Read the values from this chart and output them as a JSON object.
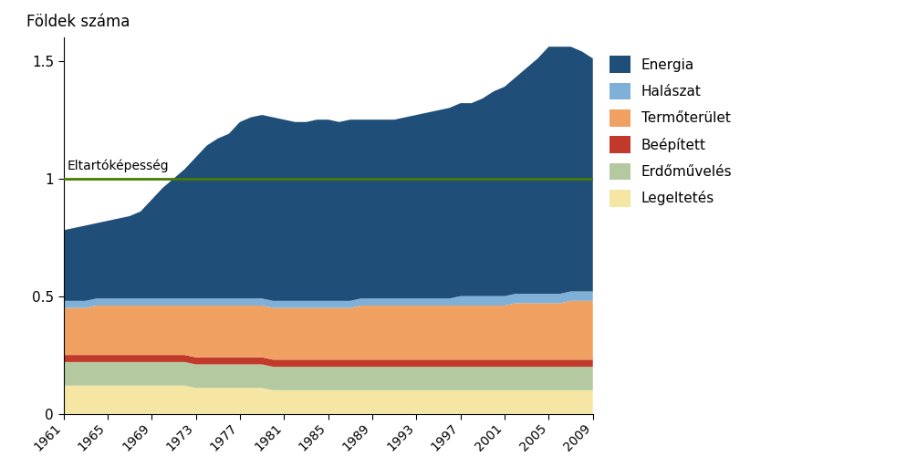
{
  "years": [
    1961,
    1962,
    1963,
    1964,
    1965,
    1966,
    1967,
    1968,
    1969,
    1970,
    1971,
    1972,
    1973,
    1974,
    1975,
    1976,
    1977,
    1978,
    1979,
    1980,
    1981,
    1982,
    1983,
    1984,
    1985,
    1986,
    1987,
    1988,
    1989,
    1990,
    1991,
    1992,
    1993,
    1994,
    1995,
    1996,
    1997,
    1998,
    1999,
    2000,
    2001,
    2002,
    2003,
    2004,
    2005,
    2006,
    2007,
    2008,
    2009
  ],
  "legeletes": [
    0.12,
    0.12,
    0.12,
    0.12,
    0.12,
    0.12,
    0.12,
    0.12,
    0.12,
    0.12,
    0.12,
    0.12,
    0.11,
    0.11,
    0.11,
    0.11,
    0.11,
    0.11,
    0.11,
    0.1,
    0.1,
    0.1,
    0.1,
    0.1,
    0.1,
    0.1,
    0.1,
    0.1,
    0.1,
    0.1,
    0.1,
    0.1,
    0.1,
    0.1,
    0.1,
    0.1,
    0.1,
    0.1,
    0.1,
    0.1,
    0.1,
    0.1,
    0.1,
    0.1,
    0.1,
    0.1,
    0.1,
    0.1,
    0.1
  ],
  "erdoMuveles": [
    0.1,
    0.1,
    0.1,
    0.1,
    0.1,
    0.1,
    0.1,
    0.1,
    0.1,
    0.1,
    0.1,
    0.1,
    0.1,
    0.1,
    0.1,
    0.1,
    0.1,
    0.1,
    0.1,
    0.1,
    0.1,
    0.1,
    0.1,
    0.1,
    0.1,
    0.1,
    0.1,
    0.1,
    0.1,
    0.1,
    0.1,
    0.1,
    0.1,
    0.1,
    0.1,
    0.1,
    0.1,
    0.1,
    0.1,
    0.1,
    0.1,
    0.1,
    0.1,
    0.1,
    0.1,
    0.1,
    0.1,
    0.1,
    0.1
  ],
  "beepitett": [
    0.03,
    0.03,
    0.03,
    0.03,
    0.03,
    0.03,
    0.03,
    0.03,
    0.03,
    0.03,
    0.03,
    0.03,
    0.03,
    0.03,
    0.03,
    0.03,
    0.03,
    0.03,
    0.03,
    0.03,
    0.03,
    0.03,
    0.03,
    0.03,
    0.03,
    0.03,
    0.03,
    0.03,
    0.03,
    0.03,
    0.03,
    0.03,
    0.03,
    0.03,
    0.03,
    0.03,
    0.03,
    0.03,
    0.03,
    0.03,
    0.03,
    0.03,
    0.03,
    0.03,
    0.03,
    0.03,
    0.03,
    0.03,
    0.03
  ],
  "termoTerulet": [
    0.2,
    0.2,
    0.2,
    0.21,
    0.21,
    0.21,
    0.21,
    0.21,
    0.21,
    0.21,
    0.21,
    0.21,
    0.22,
    0.22,
    0.22,
    0.22,
    0.22,
    0.22,
    0.22,
    0.22,
    0.22,
    0.22,
    0.22,
    0.22,
    0.22,
    0.22,
    0.22,
    0.23,
    0.23,
    0.23,
    0.23,
    0.23,
    0.23,
    0.23,
    0.23,
    0.23,
    0.23,
    0.23,
    0.23,
    0.23,
    0.23,
    0.24,
    0.24,
    0.24,
    0.24,
    0.24,
    0.25,
    0.25,
    0.25
  ],
  "halaszat": [
    0.03,
    0.03,
    0.03,
    0.03,
    0.03,
    0.03,
    0.03,
    0.03,
    0.03,
    0.03,
    0.03,
    0.03,
    0.03,
    0.03,
    0.03,
    0.03,
    0.03,
    0.03,
    0.03,
    0.03,
    0.03,
    0.03,
    0.03,
    0.03,
    0.03,
    0.03,
    0.03,
    0.03,
    0.03,
    0.03,
    0.03,
    0.03,
    0.03,
    0.03,
    0.03,
    0.03,
    0.04,
    0.04,
    0.04,
    0.04,
    0.04,
    0.04,
    0.04,
    0.04,
    0.04,
    0.04,
    0.04,
    0.04,
    0.04
  ],
  "energia": [
    0.3,
    0.31,
    0.32,
    0.32,
    0.33,
    0.34,
    0.35,
    0.37,
    0.42,
    0.47,
    0.51,
    0.55,
    0.6,
    0.65,
    0.68,
    0.7,
    0.75,
    0.77,
    0.78,
    0.78,
    0.77,
    0.76,
    0.76,
    0.77,
    0.77,
    0.76,
    0.77,
    0.76,
    0.76,
    0.76,
    0.76,
    0.77,
    0.78,
    0.79,
    0.8,
    0.81,
    0.82,
    0.82,
    0.84,
    0.87,
    0.89,
    0.92,
    0.96,
    1.0,
    1.05,
    1.05,
    1.04,
    1.02,
    0.99
  ],
  "colors": {
    "legeletes": "#f5e6a3",
    "erdoMuveles": "#b5c9a0",
    "beepitett": "#c0392b",
    "termoTerulet": "#f0a060",
    "halaszat": "#7fb0d8",
    "energia": "#1f4e79"
  },
  "ylabel": "Földek száma",
  "ylim": [
    0,
    1.6
  ],
  "yticks": [
    0,
    0.5,
    1,
    1.5
  ],
  "xlabel_ticks": [
    1961,
    1965,
    1969,
    1973,
    1977,
    1981,
    1985,
    1989,
    1993,
    1997,
    2001,
    2005,
    2009
  ],
  "carrying_capacity_label": "Eltartóképesség",
  "carrying_capacity_value": 1.0,
  "carrying_capacity_color": "#4a7c00",
  "legend_labels": [
    "Energia",
    "Halászat",
    "Termőterület",
    "Beépített",
    "Erdőművelés",
    "Legeltetés"
  ],
  "legend_colors": [
    "#1f4e79",
    "#7fb0d8",
    "#f0a060",
    "#c0392b",
    "#b5c9a0",
    "#f5e6a3"
  ]
}
